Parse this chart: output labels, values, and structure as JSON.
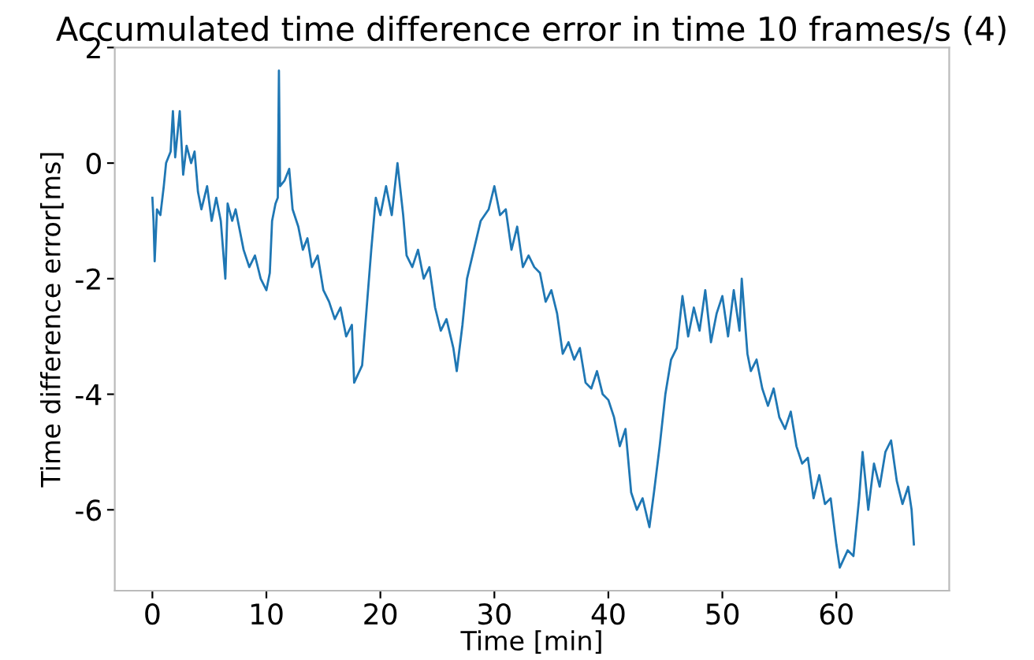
{
  "chart_data": {
    "type": "line",
    "title": "Accumulated time difference error in time 10 frames/s (4)",
    "xlabel": "Time [min]",
    "ylabel": "Time difference error[ms]",
    "xlim": [
      -3.3,
      69.9
    ],
    "ylim": [
      -7.4,
      2.0
    ],
    "xticks": [
      0,
      10,
      20,
      30,
      40,
      50,
      60
    ],
    "yticks": [
      -6,
      -4,
      -2,
      0,
      2
    ],
    "grid": false,
    "legend": false,
    "marker": "none",
    "line_style": "solid",
    "x": [
      0.0,
      0.1,
      0.2,
      0.4,
      0.7,
      1.0,
      1.2,
      1.6,
      1.8,
      2.0,
      2.4,
      2.7,
      3.0,
      3.4,
      3.7,
      4.0,
      4.3,
      4.8,
      5.2,
      5.6,
      6.0,
      6.4,
      6.6,
      7.0,
      7.3,
      8.0,
      8.5,
      9.0,
      9.5,
      10.0,
      10.3,
      10.5,
      10.8,
      11.0,
      11.1,
      11.2,
      11.6,
      12.0,
      12.3,
      12.8,
      13.2,
      13.6,
      14.0,
      14.5,
      15.0,
      15.5,
      16.0,
      16.5,
      17.0,
      17.5,
      17.7,
      18.4,
      18.8,
      19.2,
      19.6,
      20.0,
      20.5,
      21.0,
      21.5,
      22.0,
      22.3,
      22.8,
      23.3,
      23.8,
      24.3,
      24.8,
      25.3,
      25.8,
      26.4,
      26.7,
      27.2,
      27.6,
      28.2,
      28.8,
      29.5,
      30.0,
      30.5,
      31.0,
      31.5,
      32.0,
      32.5,
      33.0,
      33.5,
      34.0,
      34.5,
      35.0,
      35.5,
      36.0,
      36.5,
      37.0,
      37.5,
      38.0,
      38.5,
      39.0,
      39.5,
      40.0,
      40.5,
      41.0,
      41.5,
      42.0,
      42.5,
      43.0,
      43.6,
      44.0,
      44.5,
      45.0,
      45.5,
      46.0,
      46.5,
      47.0,
      47.5,
      48.0,
      48.5,
      49.0,
      49.5,
      50.0,
      50.5,
      51.0,
      51.5,
      51.7,
      52.2,
      52.5,
      53.0,
      53.5,
      54.0,
      54.5,
      55.0,
      55.5,
      56.0,
      56.5,
      57.0,
      57.5,
      58.0,
      58.5,
      59.0,
      59.5,
      60.0,
      60.3,
      61.0,
      61.5,
      62.0,
      62.3,
      62.8,
      63.3,
      63.8,
      64.3,
      64.8,
      65.3,
      65.8,
      66.3,
      66.6,
      66.8
    ],
    "series": [
      {
        "color": "#1f77b4",
        "values": [
          -0.6,
          -1.0,
          -1.7,
          -0.8,
          -0.9,
          -0.4,
          0.0,
          0.2,
          0.9,
          0.1,
          0.9,
          -0.2,
          0.3,
          0.0,
          0.2,
          -0.5,
          -0.8,
          -0.4,
          -1.0,
          -0.6,
          -1.0,
          -2.0,
          -0.7,
          -1.0,
          -0.8,
          -1.5,
          -1.8,
          -1.6,
          -2.0,
          -2.2,
          -1.9,
          -1.0,
          -0.7,
          -0.6,
          1.6,
          -0.4,
          -0.3,
          -0.1,
          -0.8,
          -1.1,
          -1.5,
          -1.3,
          -1.8,
          -1.6,
          -2.2,
          -2.4,
          -2.7,
          -2.5,
          -3.0,
          -2.8,
          -3.8,
          -3.5,
          -2.5,
          -1.5,
          -0.6,
          -0.9,
          -0.4,
          -0.9,
          0.0,
          -0.9,
          -1.6,
          -1.8,
          -1.5,
          -2.0,
          -1.8,
          -2.5,
          -2.9,
          -2.7,
          -3.2,
          -3.6,
          -2.8,
          -2.0,
          -1.5,
          -1.0,
          -0.8,
          -0.4,
          -0.9,
          -0.8,
          -1.5,
          -1.1,
          -1.8,
          -1.6,
          -1.8,
          -1.9,
          -2.4,
          -2.2,
          -2.6,
          -3.3,
          -3.1,
          -3.4,
          -3.2,
          -3.8,
          -3.9,
          -3.6,
          -4.0,
          -4.1,
          -4.4,
          -4.9,
          -4.6,
          -5.7,
          -6.0,
          -5.8,
          -6.3,
          -5.7,
          -4.9,
          -4.0,
          -3.4,
          -3.2,
          -2.3,
          -3.0,
          -2.5,
          -2.9,
          -2.2,
          -3.1,
          -2.6,
          -2.3,
          -3.0,
          -2.2,
          -2.9,
          -2.0,
          -3.3,
          -3.6,
          -3.4,
          -3.9,
          -4.2,
          -3.9,
          -4.4,
          -4.6,
          -4.3,
          -4.9,
          -5.2,
          -5.1,
          -5.8,
          -5.4,
          -5.9,
          -5.8,
          -6.6,
          -7.0,
          -6.7,
          -6.8,
          -5.8,
          -5.0,
          -6.0,
          -5.2,
          -5.6,
          -5.0,
          -4.8,
          -5.5,
          -5.9,
          -5.6,
          -6.0,
          -6.6
        ]
      }
    ]
  }
}
